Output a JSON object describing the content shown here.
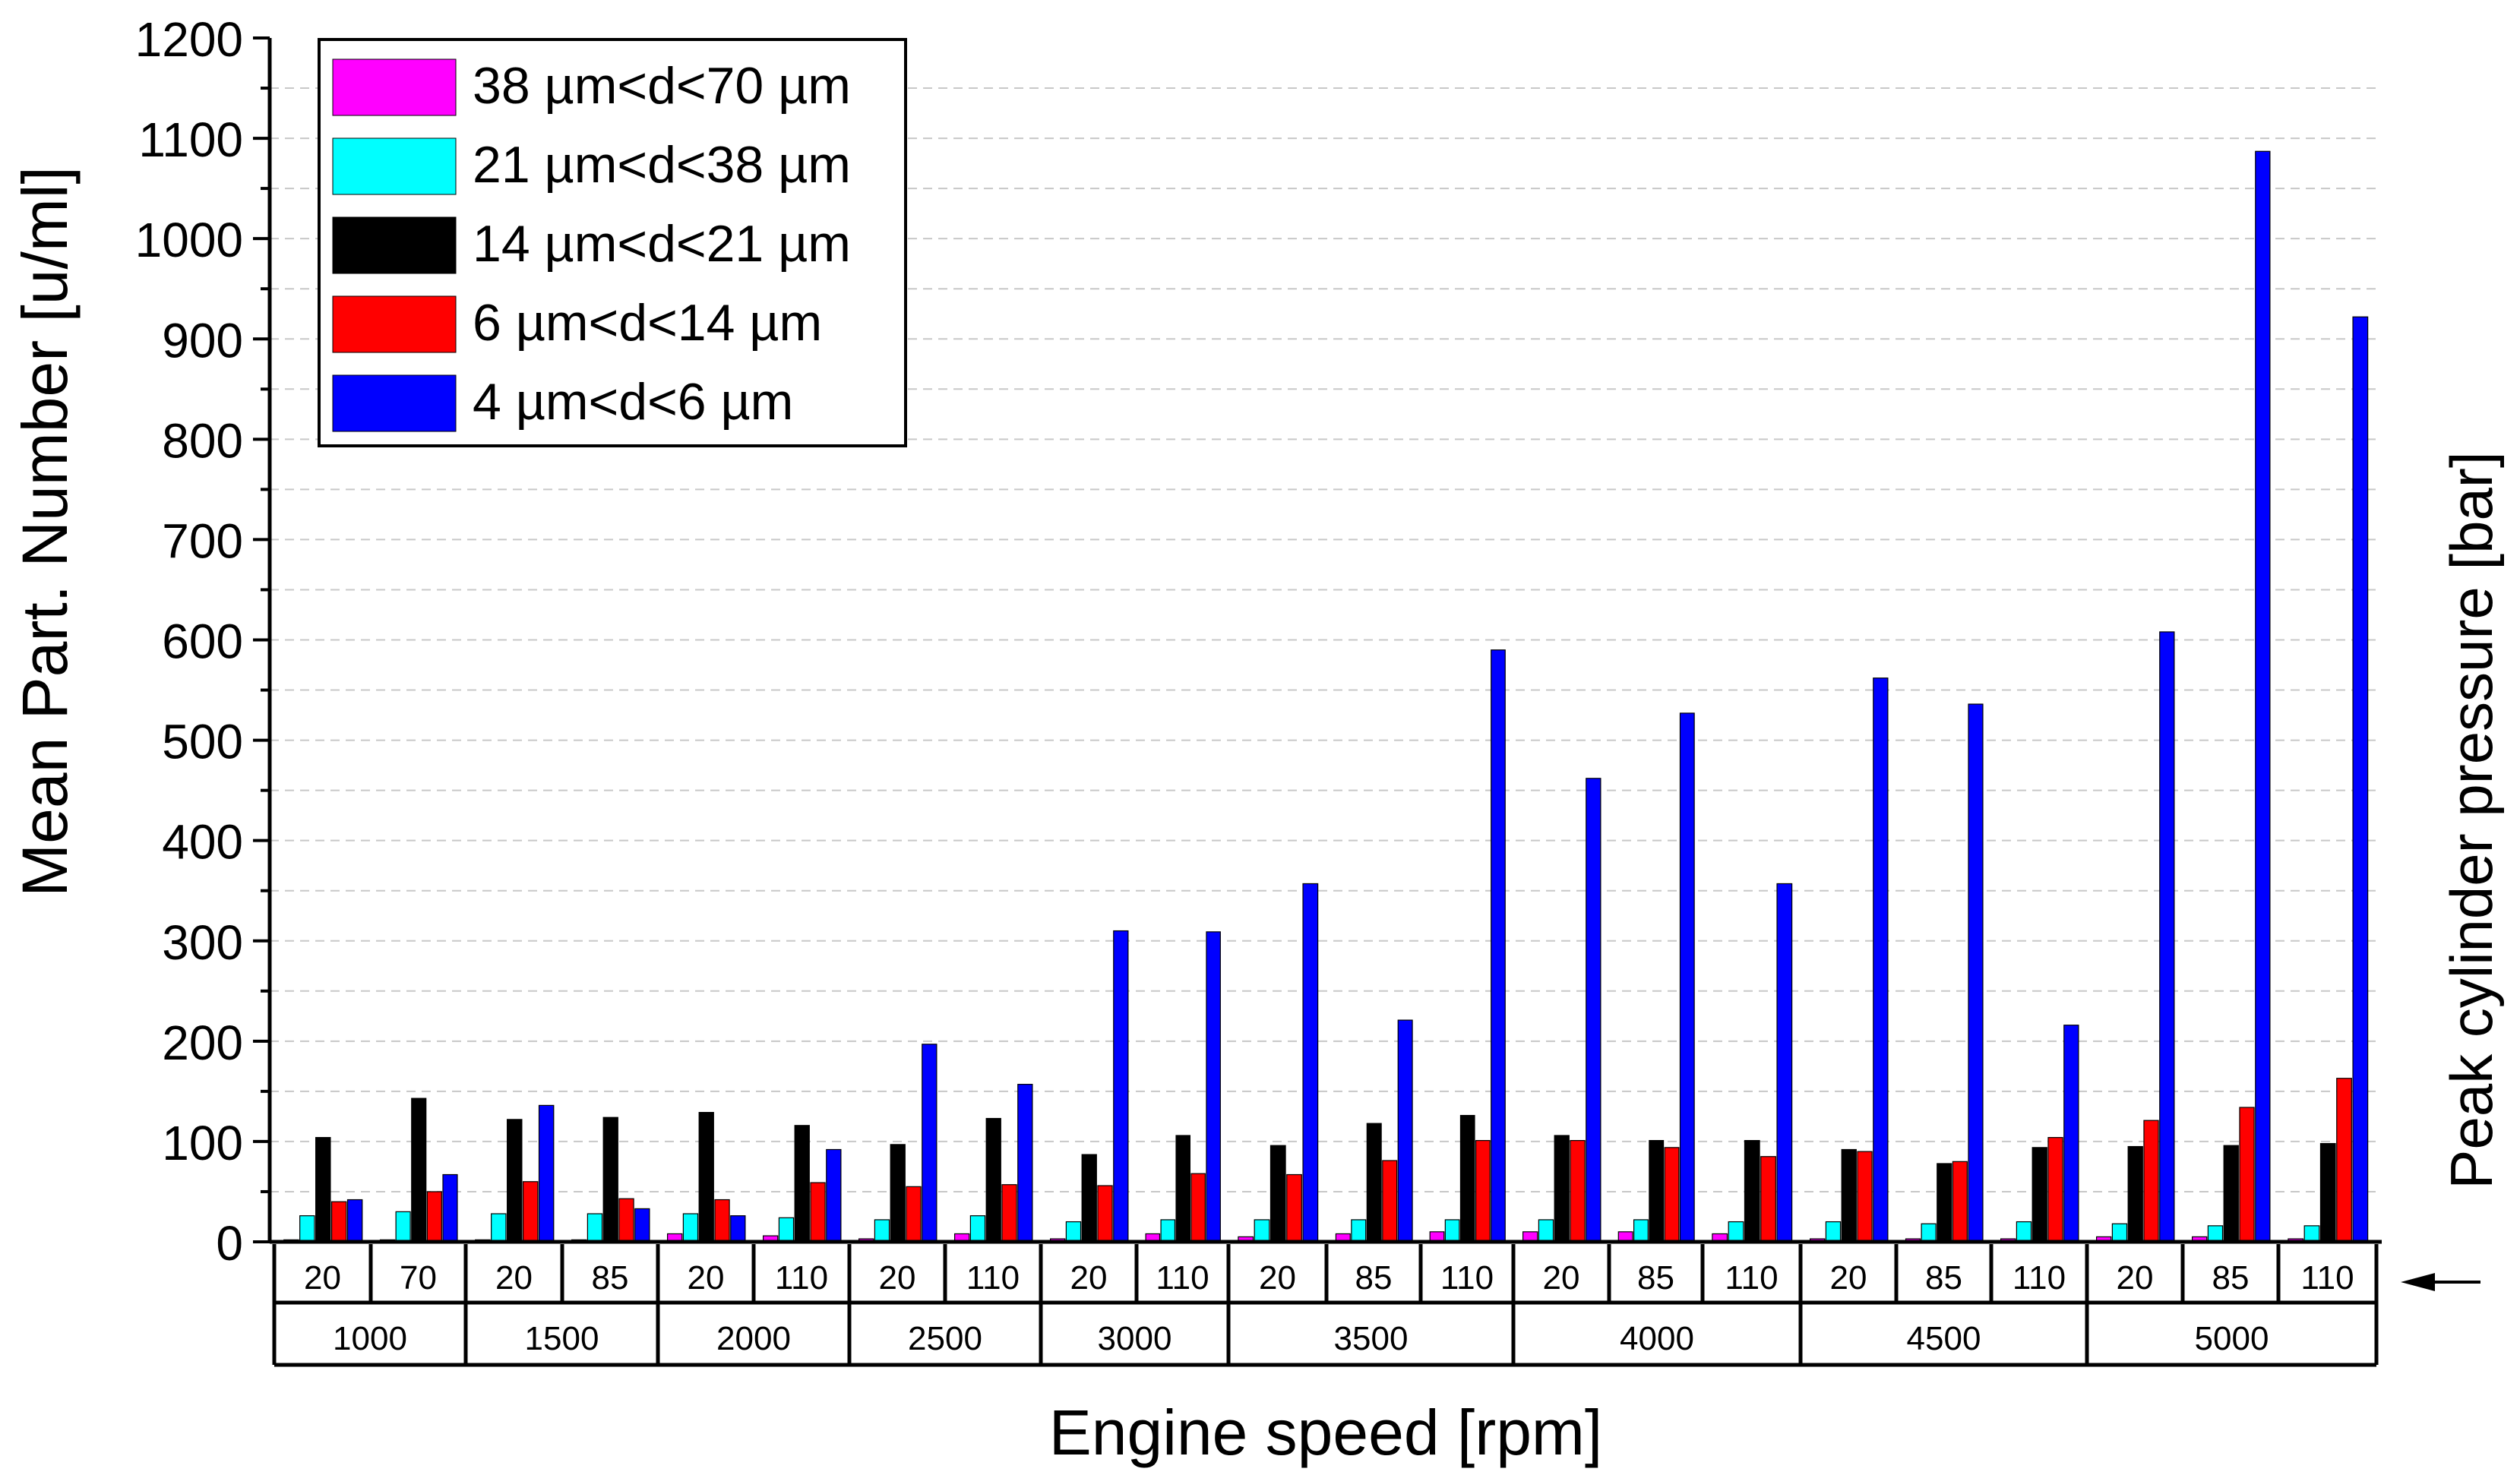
{
  "chart_data": {
    "type": "bar",
    "ylabel": "Mean Part. Number [u/ml]",
    "xlabel": "Engine speed [rpm]",
    "secondary_label": "Peak cylinder pressure [bar]",
    "ylim": [
      0,
      1200
    ],
    "yticks": [
      "0",
      "100",
      "200",
      "300",
      "400",
      "500",
      "600",
      "700",
      "800",
      "900",
      "1000",
      "1100",
      "1200"
    ],
    "grid": "horizontal dashed",
    "legend_position": "top-left",
    "speeds": [
      {
        "label": "1000",
        "pressures": [
          "20",
          "70"
        ]
      },
      {
        "label": "1500",
        "pressures": [
          "20",
          "85"
        ]
      },
      {
        "label": "2000",
        "pressures": [
          "20",
          "110"
        ]
      },
      {
        "label": "2500",
        "pressures": [
          "20",
          "110"
        ]
      },
      {
        "label": "3000",
        "pressures": [
          "20",
          "110"
        ]
      },
      {
        "label": "3500",
        "pressures": [
          "20",
          "85",
          "110"
        ]
      },
      {
        "label": "4000",
        "pressures": [
          "20",
          "85",
          "110"
        ]
      },
      {
        "label": "4500",
        "pressures": [
          "20",
          "85",
          "110"
        ]
      },
      {
        "label": "5000",
        "pressures": [
          "20",
          "85",
          "110"
        ]
      }
    ],
    "series": [
      {
        "name": "38 µm<d<70 µm",
        "color": "#ff00ff",
        "values": [
          2,
          2,
          2,
          2,
          8,
          6,
          3,
          8,
          3,
          8,
          5,
          8,
          10,
          10,
          10,
          8,
          3,
          3,
          3,
          5,
          5,
          3
        ]
      },
      {
        "name": "21 µm<d<38 µm",
        "color": "#00ffff",
        "values": [
          26,
          30,
          28,
          28,
          28,
          24,
          22,
          26,
          20,
          22,
          22,
          22,
          22,
          22,
          22,
          20,
          20,
          18,
          20,
          18,
          16,
          16
        ]
      },
      {
        "name": "14 µm<d<21 µm",
        "color": "#000000",
        "values": [
          104,
          143,
          122,
          124,
          129,
          116,
          97,
          123,
          87,
          106,
          96,
          118,
          126,
          106,
          101,
          101,
          92,
          78,
          94,
          95,
          96,
          98
        ]
      },
      {
        "name": "6 µm<d<14 µm",
        "color": "#ff0000",
        "values": [
          40,
          50,
          60,
          43,
          42,
          59,
          55,
          57,
          56,
          68,
          67,
          81,
          101,
          101,
          94,
          85,
          90,
          80,
          104,
          121,
          134,
          163
        ]
      },
      {
        "name": "4 µm<d<6 µm",
        "color": "#0000ff",
        "values": [
          42,
          67,
          136,
          33,
          26,
          92,
          197,
          157,
          310,
          309,
          357,
          221,
          590,
          462,
          527,
          357,
          562,
          536,
          216,
          608,
          1087,
          922
        ]
      }
    ]
  }
}
